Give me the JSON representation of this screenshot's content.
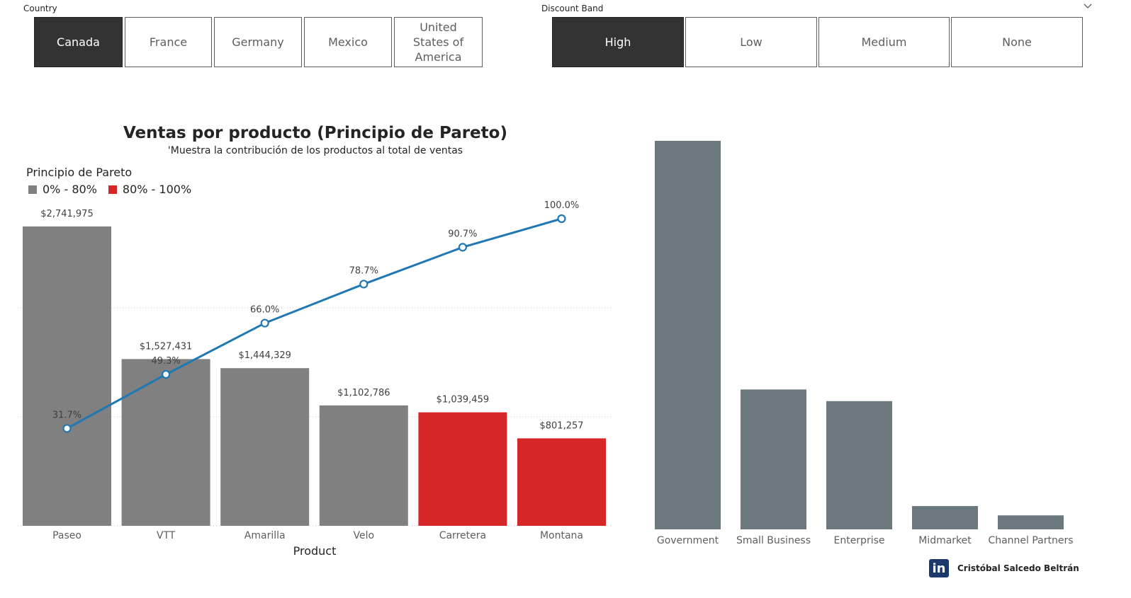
{
  "slicers": {
    "country": {
      "title": "Country",
      "options": [
        "Canada",
        "France",
        "Germany",
        "Mexico",
        "United States of America"
      ],
      "selected": "Canada"
    },
    "discount_band": {
      "title": "Discount Band",
      "options": [
        "High",
        "Low",
        "Medium",
        "None"
      ],
      "selected": "High"
    }
  },
  "pareto": {
    "title": "Ventas por producto (Principio de Pareto)",
    "subtitle": "'Muestra la contribución de los productos al total de ventas",
    "legend_title": "Principio de Pareto",
    "legend": [
      {
        "label": "0% - 80%",
        "color": "#808080"
      },
      {
        "label": "80% - 100%",
        "color": "#d62728"
      }
    ]
  },
  "credit": {
    "logo_text": "in",
    "name": "Cristóbal Salcedo Beltrán"
  },
  "chart_data": [
    {
      "type": "bar",
      "title": "Ventas por producto (Principio de Pareto)",
      "xlabel": "Product",
      "categories": [
        "Paseo",
        "VTT",
        "Amarilla",
        "Velo",
        "Carretera",
        "Montana"
      ],
      "values": [
        2741975,
        1527431,
        1444329,
        1102786,
        1039459,
        801257
      ],
      "value_labels": [
        "$2,741,975",
        "$1,527,431",
        "$1,444,329",
        "$1,102,786",
        "$1,039,459",
        "$801,257"
      ],
      "groups": [
        "0% - 80%",
        "0% - 80%",
        "0% - 80%",
        "0% - 80%",
        "80% - 100%",
        "80% - 100%"
      ],
      "colors": {
        "0% - 80%": "#808080",
        "80% - 100%": "#d62728"
      },
      "cumulative_pct": [
        31.7,
        49.3,
        66.0,
        78.7,
        90.7,
        100.0
      ],
      "cumulative_labels": [
        "31.7%",
        "49.3%",
        "66.0%",
        "78.7%",
        "90.7%",
        "100.0%"
      ],
      "line_color": "#1f77b4",
      "grid": true
    },
    {
      "type": "bar",
      "categories": [
        "Government",
        "Small Business",
        "Enterprise",
        "Midmarket",
        "Channel Partners"
      ],
      "values": [
        100,
        36,
        33,
        6,
        3.6
      ],
      "bar_color": "#6b787e",
      "grid": false
    }
  ]
}
